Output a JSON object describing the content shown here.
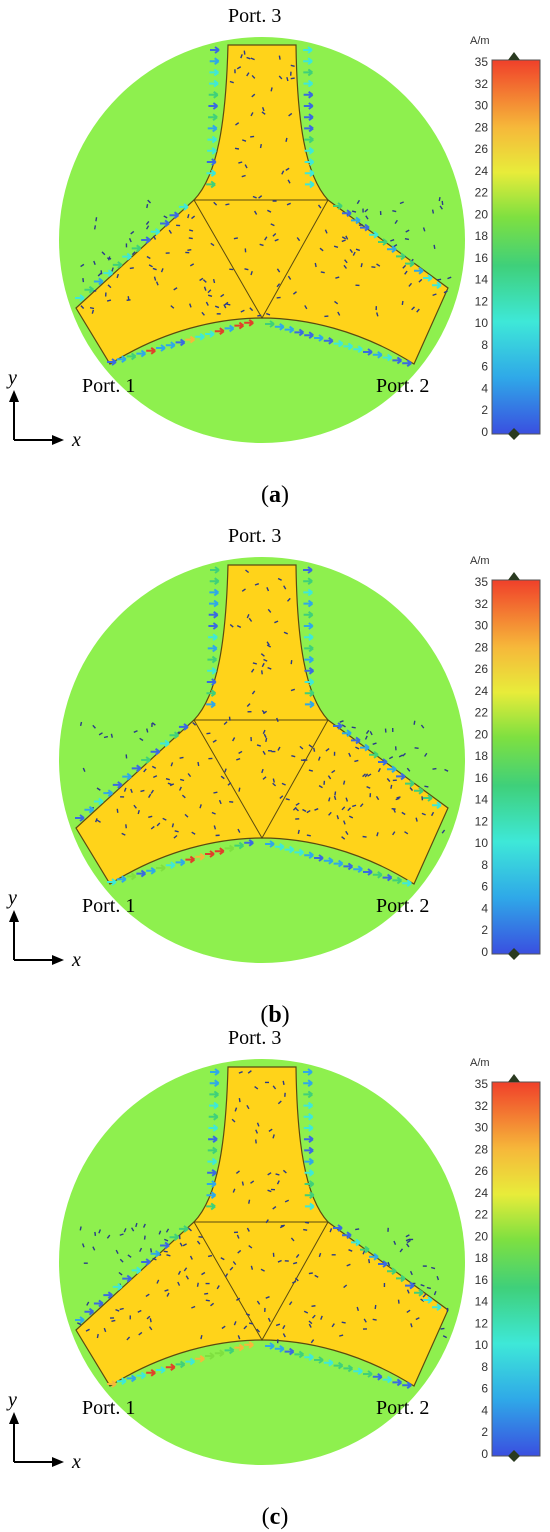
{
  "panels": [
    {
      "caption_letter": "a",
      "port_labels": {
        "top": "Port. 3",
        "left": "Port. 1",
        "right": "Port. 2"
      },
      "axes": {
        "x": "x",
        "y": "y"
      },
      "colorbar": {
        "unit": "A/m",
        "min": 0,
        "max": 35,
        "ticks": [
          "35",
          "32",
          "30",
          "28",
          "26",
          "24",
          "22",
          "20",
          "18",
          "16",
          "14",
          "12",
          "10",
          "8",
          "6",
          "4",
          "2",
          "0"
        ]
      }
    },
    {
      "caption_letter": "b",
      "port_labels": {
        "top": "Port. 3",
        "left": "Port. 1",
        "right": "Port. 2"
      },
      "axes": {
        "x": "x",
        "y": "y"
      },
      "colorbar": {
        "unit": "A/m",
        "min": 0,
        "max": 35,
        "ticks": [
          "35",
          "32",
          "30",
          "28",
          "26",
          "24",
          "22",
          "20",
          "18",
          "16",
          "14",
          "12",
          "10",
          "8",
          "6",
          "4",
          "2",
          "0"
        ]
      }
    },
    {
      "caption_letter": "c",
      "port_labels": {
        "top": "Port. 3",
        "left": "Port. 1",
        "right": "Port. 2"
      },
      "axes": {
        "x": "x",
        "y": "y"
      },
      "colorbar": {
        "unit": "A/m",
        "min": 0,
        "max": 35,
        "ticks": [
          "35",
          "32",
          "30",
          "28",
          "26",
          "24",
          "22",
          "20",
          "18",
          "16",
          "14",
          "12",
          "10",
          "8",
          "6",
          "4",
          "2",
          "0"
        ]
      }
    }
  ],
  "colors": {
    "background_disc": "#8ef04e",
    "conductor": "#ffd31a",
    "outline": "#5a4a10",
    "scale_low": "#3a4fe0",
    "scale_high": "#f0402a"
  }
}
